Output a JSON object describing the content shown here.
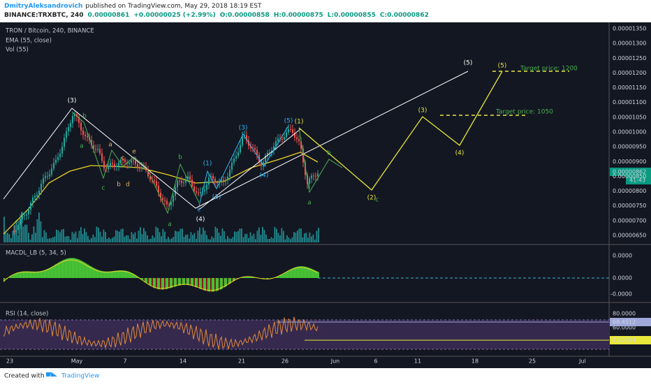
{
  "header": {
    "author": "DmitryAleksandrovich",
    "published": "published on TradingView.com, May 29, 2018 18:19 EST",
    "symbol": "BINANCE:TRXBTC, 240",
    "last": "0.00000861",
    "change": "+0.00000025 (+2.99%)",
    "open": "O:0.00000858",
    "high": "H:0.00000875",
    "low": "L:0.00000855",
    "close": "C:0.00000862"
  },
  "main_pane": {
    "title": "TRON / Bitcoin, 240, BINANCE",
    "indicators": [
      "EMA (55, close)",
      "Vol (55)"
    ],
    "price_labels": [
      "0.00001350",
      "0.00001300",
      "0.00001250",
      "0.00001200",
      "0.00001150",
      "0.00001100",
      "0.00001050",
      "0.00001000",
      "0.00000950",
      "0.00000900",
      "0.00000850",
      "0.00000800",
      "0.00000750",
      "0.00000700",
      "0.00000650"
    ],
    "current_price": "0.00000862",
    "countdown": "41:43"
  },
  "macd_pane": {
    "title": "MACDL_LB (5, 34, 5)",
    "labels": [
      "0.0000",
      "0.0000",
      "-0.0000"
    ]
  },
  "rsi_pane": {
    "title": "RSI (14, close)",
    "labels": [
      "80.0000",
      "60.0000"
    ],
    "value_labels": [
      "68.4512",
      "42.2984"
    ]
  },
  "time_axis": [
    "23",
    "May",
    "7",
    "14",
    "21",
    "26",
    "Jun",
    "6",
    "11",
    "18",
    "25",
    "Jul"
  ],
  "annotations": [
    "(3)",
    "b",
    "a",
    "a",
    "c",
    "e",
    "c",
    "b",
    "d",
    "b",
    "a",
    "(1)",
    "c",
    "(2)",
    "(4)",
    "(3)",
    "(4)",
    "(5)",
    "(1)",
    "b",
    "a",
    "(2)",
    "c",
    "(3)",
    "(4)",
    "(5)",
    "(5)"
  ],
  "targets": [
    "Target price: 1200",
    "Target price: 1050"
  ],
  "footer": {
    "created": "Created with",
    "brand": "TradingView"
  }
}
